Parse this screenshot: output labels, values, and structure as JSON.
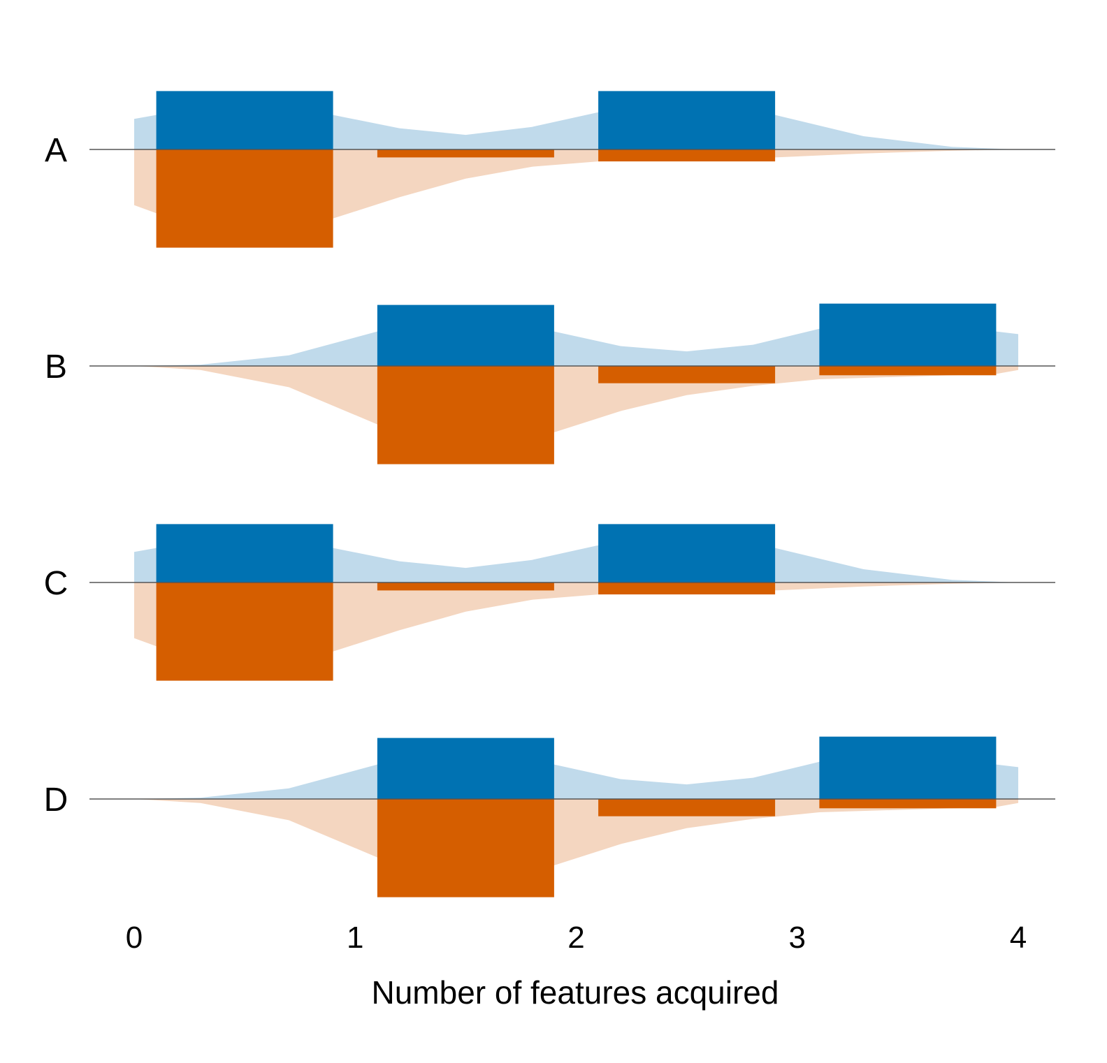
{
  "chart_data": {
    "type": "bar",
    "xlabel": "Number of features acquired",
    "ylabel": "",
    "xlim": [
      0,
      4
    ],
    "x_ticks": [
      "0",
      "1",
      "2",
      "3",
      "4"
    ],
    "bar_width": 0.8,
    "series_styles": [
      {
        "bar_color": "#0072b2",
        "area_color": "#c0daeb",
        "direction": "up"
      },
      {
        "bar_color": "#d55e00",
        "area_color": "#f4d6c0",
        "direction": "down"
      }
    ],
    "rows": [
      {
        "label": "A",
        "bars": [
          {
            "x": 0.5,
            "values": [
              0.44,
              0.74
            ]
          },
          {
            "x": 1.5,
            "values": [
              0.0,
              0.06
            ]
          },
          {
            "x": 2.5,
            "values": [
              0.44,
              0.09
            ]
          }
        ],
        "density": [
          {
            "x": 0.0,
            "values": [
              0.23,
              0.42
            ]
          },
          {
            "x": 0.1,
            "values": [
              0.26,
              0.48
            ]
          },
          {
            "x": 0.9,
            "values": [
              0.26,
              0.52
            ]
          },
          {
            "x": 1.2,
            "values": [
              0.16,
              0.36
            ]
          },
          {
            "x": 1.5,
            "values": [
              0.11,
              0.22
            ]
          },
          {
            "x": 1.8,
            "values": [
              0.17,
              0.13
            ]
          },
          {
            "x": 2.1,
            "values": [
              0.28,
              0.09
            ]
          },
          {
            "x": 2.5,
            "values": [
              0.27,
              0.08
            ]
          },
          {
            "x": 2.9,
            "values": [
              0.26,
              0.06
            ]
          },
          {
            "x": 3.3,
            "values": [
              0.1,
              0.03
            ]
          },
          {
            "x": 3.7,
            "values": [
              0.02,
              0.01
            ]
          },
          {
            "x": 4.0,
            "values": [
              0.0,
              0.0
            ]
          }
        ]
      },
      {
        "label": "B",
        "bars": [
          {
            "x": 1.5,
            "values": [
              0.46,
              0.74
            ]
          },
          {
            "x": 2.5,
            "values": [
              0.0,
              0.13
            ]
          },
          {
            "x": 3.5,
            "values": [
              0.47,
              0.07
            ]
          }
        ],
        "density": [
          {
            "x": 0.0,
            "values": [
              0.0,
              0.0
            ]
          },
          {
            "x": 0.3,
            "values": [
              0.01,
              0.03
            ]
          },
          {
            "x": 0.7,
            "values": [
              0.08,
              0.16
            ]
          },
          {
            "x": 1.1,
            "values": [
              0.26,
              0.44
            ]
          },
          {
            "x": 1.9,
            "values": [
              0.26,
              0.5
            ]
          },
          {
            "x": 2.2,
            "values": [
              0.15,
              0.34
            ]
          },
          {
            "x": 2.5,
            "values": [
              0.11,
              0.22
            ]
          },
          {
            "x": 2.8,
            "values": [
              0.16,
              0.15
            ]
          },
          {
            "x": 3.1,
            "values": [
              0.28,
              0.1
            ]
          },
          {
            "x": 3.9,
            "values": [
              0.26,
              0.06
            ]
          },
          {
            "x": 4.0,
            "values": [
              0.24,
              0.03
            ]
          }
        ]
      },
      {
        "label": "C",
        "bars": [
          {
            "x": 0.5,
            "values": [
              0.44,
              0.74
            ]
          },
          {
            "x": 1.5,
            "values": [
              0.0,
              0.06
            ]
          },
          {
            "x": 2.5,
            "values": [
              0.44,
              0.09
            ]
          }
        ],
        "density": [
          {
            "x": 0.0,
            "values": [
              0.23,
              0.42
            ]
          },
          {
            "x": 0.1,
            "values": [
              0.26,
              0.48
            ]
          },
          {
            "x": 0.9,
            "values": [
              0.26,
              0.52
            ]
          },
          {
            "x": 1.2,
            "values": [
              0.16,
              0.36
            ]
          },
          {
            "x": 1.5,
            "values": [
              0.11,
              0.22
            ]
          },
          {
            "x": 1.8,
            "values": [
              0.17,
              0.13
            ]
          },
          {
            "x": 2.1,
            "values": [
              0.28,
              0.09
            ]
          },
          {
            "x": 2.5,
            "values": [
              0.27,
              0.08
            ]
          },
          {
            "x": 2.9,
            "values": [
              0.26,
              0.06
            ]
          },
          {
            "x": 3.3,
            "values": [
              0.1,
              0.03
            ]
          },
          {
            "x": 3.7,
            "values": [
              0.02,
              0.01
            ]
          },
          {
            "x": 4.0,
            "values": [
              0.0,
              0.0
            ]
          }
        ]
      },
      {
        "label": "D",
        "bars": [
          {
            "x": 1.5,
            "values": [
              0.46,
              0.74
            ]
          },
          {
            "x": 2.5,
            "values": [
              0.0,
              0.13
            ]
          },
          {
            "x": 3.5,
            "values": [
              0.47,
              0.07
            ]
          }
        ],
        "density": [
          {
            "x": 0.0,
            "values": [
              0.0,
              0.0
            ]
          },
          {
            "x": 0.3,
            "values": [
              0.01,
              0.03
            ]
          },
          {
            "x": 0.7,
            "values": [
              0.08,
              0.16
            ]
          },
          {
            "x": 1.1,
            "values": [
              0.26,
              0.44
            ]
          },
          {
            "x": 1.9,
            "values": [
              0.26,
              0.5
            ]
          },
          {
            "x": 2.2,
            "values": [
              0.15,
              0.34
            ]
          },
          {
            "x": 2.5,
            "values": [
              0.11,
              0.22
            ]
          },
          {
            "x": 2.8,
            "values": [
              0.16,
              0.15
            ]
          },
          {
            "x": 3.1,
            "values": [
              0.28,
              0.1
            ]
          },
          {
            "x": 3.9,
            "values": [
              0.26,
              0.06
            ]
          },
          {
            "x": 4.0,
            "values": [
              0.24,
              0.03
            ]
          }
        ]
      }
    ]
  }
}
